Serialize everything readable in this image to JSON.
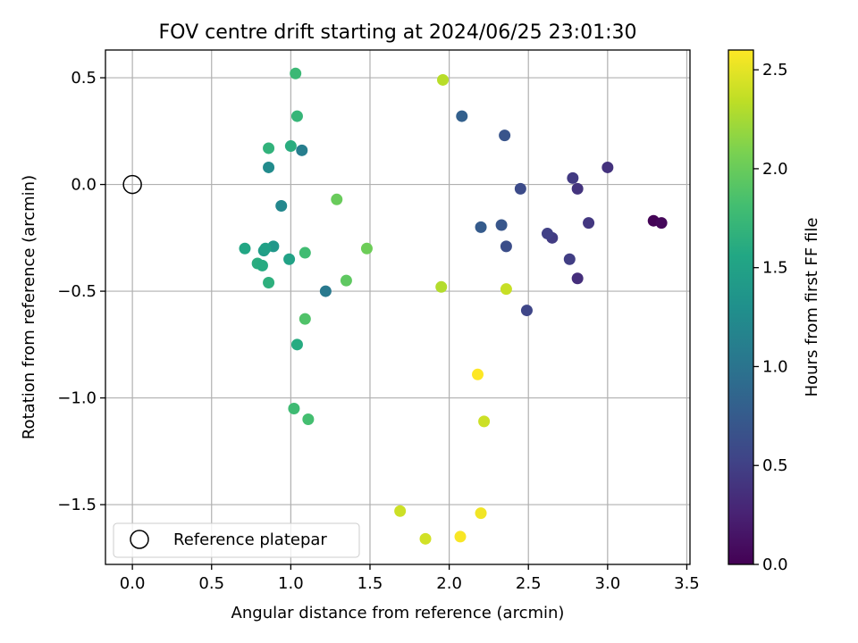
{
  "chart_data": {
    "type": "scatter",
    "title": "FOV centre drift starting at 2024/06/25 23:01:30",
    "xlabel": "Angular distance from reference (arcmin)",
    "ylabel": "Rotation from reference (arcmin)",
    "xlim": [
      -0.17,
      3.52
    ],
    "ylim": [
      -1.78,
      0.63
    ],
    "xticks": [
      0.0,
      0.5,
      1.0,
      1.5,
      2.0,
      2.5,
      3.0,
      3.5
    ],
    "xtick_labels": [
      "0.0",
      "0.5",
      "1.0",
      "1.5",
      "2.0",
      "2.5",
      "3.0",
      "3.5"
    ],
    "yticks": [
      0.5,
      0.0,
      -0.5,
      -1.0,
      -1.5
    ],
    "ytick_labels": [
      "0.5",
      "0.0",
      "−0.5",
      "−1.0",
      "−1.5"
    ],
    "grid": true,
    "colormap": "viridis",
    "colorbar": {
      "label": "Hours from first FF file",
      "range": [
        0.0,
        2.6
      ],
      "ticks": [
        0.0,
        0.5,
        1.0,
        1.5,
        2.0,
        2.5
      ],
      "tick_labels": [
        "0.0",
        "0.5",
        "1.0",
        "1.5",
        "2.0",
        "2.5"
      ]
    },
    "legend": {
      "position": "lower-left",
      "entries": [
        {
          "label": "Reference platepar",
          "marker": "hollow-circle"
        }
      ]
    },
    "reference_point": {
      "x": 0.0,
      "y": 0.0
    },
    "series": [
      {
        "points": [
          {
            "x": 3.29,
            "y": -0.17,
            "c": 0.02
          },
          {
            "x": 3.34,
            "y": -0.18,
            "c": 0.05
          },
          {
            "x": 3.0,
            "y": 0.08,
            "c": 0.38
          },
          {
            "x": 2.88,
            "y": -0.18,
            "c": 0.42
          },
          {
            "x": 2.81,
            "y": -0.44,
            "c": 0.35
          },
          {
            "x": 2.81,
            "y": -0.02,
            "c": 0.4
          },
          {
            "x": 2.78,
            "y": 0.03,
            "c": 0.45
          },
          {
            "x": 2.76,
            "y": -0.35,
            "c": 0.48
          },
          {
            "x": 2.65,
            "y": -0.25,
            "c": 0.46
          },
          {
            "x": 2.62,
            "y": -0.23,
            "c": 0.5
          },
          {
            "x": 2.49,
            "y": -0.59,
            "c": 0.55
          },
          {
            "x": 2.45,
            "y": -0.02,
            "c": 0.6
          },
          {
            "x": 2.36,
            "y": -0.29,
            "c": 0.62
          },
          {
            "x": 2.35,
            "y": 0.23,
            "c": 0.68
          },
          {
            "x": 2.33,
            "y": -0.19,
            "c": 0.7
          },
          {
            "x": 2.2,
            "y": -0.2,
            "c": 0.75
          },
          {
            "x": 2.08,
            "y": 0.32,
            "c": 0.8
          },
          {
            "x": 1.22,
            "y": -0.5,
            "c": 1.05
          },
          {
            "x": 1.07,
            "y": 0.16,
            "c": 1.1
          },
          {
            "x": 0.94,
            "y": -0.1,
            "c": 1.2
          },
          {
            "x": 0.86,
            "y": 0.08,
            "c": 1.25
          },
          {
            "x": 0.89,
            "y": -0.29,
            "c": 1.38
          },
          {
            "x": 0.83,
            "y": -0.31,
            "c": 1.45
          },
          {
            "x": 0.84,
            "y": -0.3,
            "c": 1.48
          },
          {
            "x": 0.99,
            "y": -0.35,
            "c": 1.5
          },
          {
            "x": 0.71,
            "y": -0.3,
            "c": 1.55
          },
          {
            "x": 0.79,
            "y": -0.37,
            "c": 1.62
          },
          {
            "x": 0.82,
            "y": -0.38,
            "c": 1.6
          },
          {
            "x": 0.86,
            "y": -0.46,
            "c": 1.65
          },
          {
            "x": 0.86,
            "y": 0.17,
            "c": 1.68
          },
          {
            "x": 1.0,
            "y": 0.18,
            "c": 1.62
          },
          {
            "x": 1.04,
            "y": -0.75,
            "c": 1.6
          },
          {
            "x": 1.04,
            "y": 0.32,
            "c": 1.72
          },
          {
            "x": 1.03,
            "y": 0.52,
            "c": 1.75
          },
          {
            "x": 1.09,
            "y": -0.32,
            "c": 1.8
          },
          {
            "x": 1.02,
            "y": -1.05,
            "c": 1.78
          },
          {
            "x": 1.11,
            "y": -1.1,
            "c": 1.82
          },
          {
            "x": 1.09,
            "y": -0.63,
            "c": 1.88
          },
          {
            "x": 1.35,
            "y": -0.45,
            "c": 1.95
          },
          {
            "x": 1.29,
            "y": -0.07,
            "c": 2.0
          },
          {
            "x": 1.48,
            "y": -0.3,
            "c": 2.02
          },
          {
            "x": 1.95,
            "y": -0.48,
            "c": 2.3
          },
          {
            "x": 1.96,
            "y": 0.49,
            "c": 2.32
          },
          {
            "x": 2.36,
            "y": -0.49,
            "c": 2.38
          },
          {
            "x": 2.22,
            "y": -1.11,
            "c": 2.4
          },
          {
            "x": 1.69,
            "y": -1.53,
            "c": 2.4
          },
          {
            "x": 1.85,
            "y": -1.66,
            "c": 2.42
          },
          {
            "x": 2.2,
            "y": -1.54,
            "c": 2.55
          },
          {
            "x": 2.07,
            "y": -1.65,
            "c": 2.58
          },
          {
            "x": 2.18,
            "y": -0.89,
            "c": 2.6
          }
        ]
      }
    ]
  }
}
